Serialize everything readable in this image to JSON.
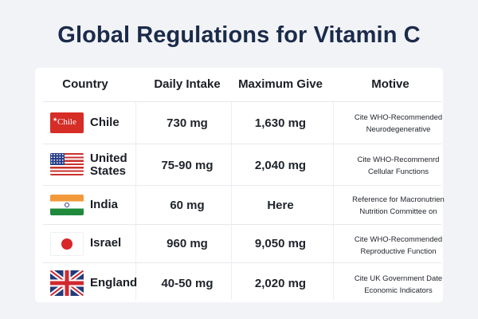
{
  "title": "Global Regulations for Vitamin C",
  "headers": {
    "country": "Country",
    "intake": "Daily Intake",
    "max": "Maximum Give",
    "motive": "Motive"
  },
  "rows": [
    {
      "flag_text": "Chile",
      "country": "Chile",
      "intake": "730 mg",
      "max": "1,630 mg",
      "motive_line1": "Cite WHO-Recommended",
      "motive_line2": "Neurodegenerative"
    },
    {
      "country": "United States",
      "intake": "75-90 mg",
      "max": "2,040 mg",
      "motive_line1": "Cite WHO-Recommenrd",
      "motive_line2": "Cellular Functions"
    },
    {
      "country": "India",
      "intake": "60 mg",
      "max": "Here",
      "motive_line1": "Reference for Macronutrien",
      "motive_line2": "Nutrition Committee on"
    },
    {
      "country": "Israel",
      "intake": "960 mg",
      "max": "9,050 mg",
      "motive_line1": "Cite WHO-Recommended",
      "motive_line2": "Reproductive Function"
    },
    {
      "country": "England",
      "intake": "40-50 mg",
      "max": "2,020 mg",
      "motive_line1": "Cite UK Government Date",
      "motive_line2": "Economic Indicators"
    }
  ],
  "colors": {
    "title": "#1b2b4b",
    "background": "#f2f3f6",
    "card": "#ffffff"
  }
}
